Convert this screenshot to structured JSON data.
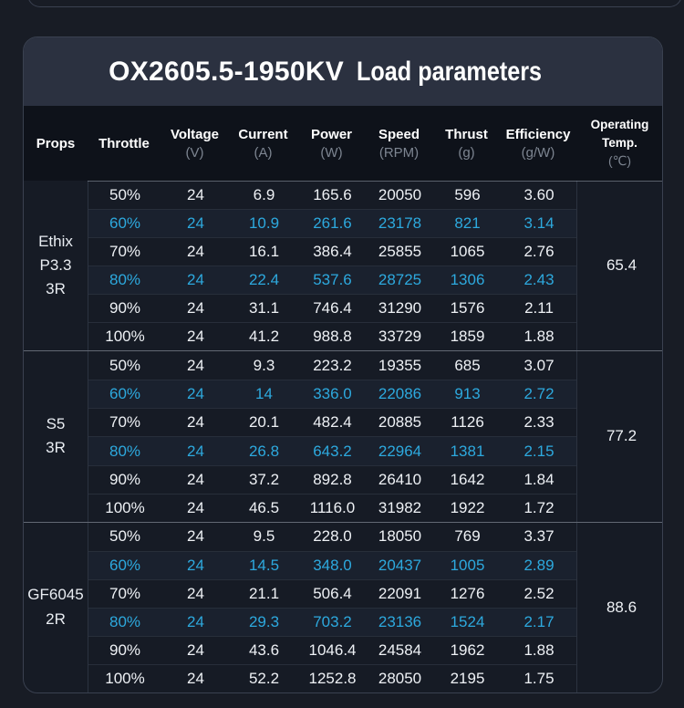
{
  "title": {
    "model": "OX2605.5-1950KV",
    "suffix": "Load parameters"
  },
  "columns": [
    {
      "label": "Props",
      "unit": ""
    },
    {
      "label": "Throttle",
      "unit": ""
    },
    {
      "label": "Voltage",
      "unit": "(V)"
    },
    {
      "label": "Current",
      "unit": "(A)"
    },
    {
      "label": "Power",
      "unit": "(W)"
    },
    {
      "label": "Speed",
      "unit": "(RPM)"
    },
    {
      "label": "Thrust",
      "unit": "(g)"
    },
    {
      "label": "Efficiency",
      "unit": "(g/W)"
    },
    {
      "label_line1": "Operating",
      "label_line2": "Temp.",
      "unit": "(℃)"
    }
  ],
  "groups": [
    {
      "prop_lines": [
        "Ethix",
        "P3.3",
        "3R"
      ],
      "operating_temp": "65.4",
      "rows": [
        {
          "throttle": "50%",
          "voltage": "24",
          "current": "6.9",
          "power": "165.6",
          "speed": "20050",
          "thrust": "596",
          "efficiency": "3.60",
          "highlight": false
        },
        {
          "throttle": "60%",
          "voltage": "24",
          "current": "10.9",
          "power": "261.6",
          "speed": "23178",
          "thrust": "821",
          "efficiency": "3.14",
          "highlight": true
        },
        {
          "throttle": "70%",
          "voltage": "24",
          "current": "16.1",
          "power": "386.4",
          "speed": "25855",
          "thrust": "1065",
          "efficiency": "2.76",
          "highlight": false
        },
        {
          "throttle": "80%",
          "voltage": "24",
          "current": "22.4",
          "power": "537.6",
          "speed": "28725",
          "thrust": "1306",
          "efficiency": "2.43",
          "highlight": true
        },
        {
          "throttle": "90%",
          "voltage": "24",
          "current": "31.1",
          "power": "746.4",
          "speed": "31290",
          "thrust": "1576",
          "efficiency": "2.11",
          "highlight": false
        },
        {
          "throttle": "100%",
          "voltage": "24",
          "current": "41.2",
          "power": "988.8",
          "speed": "33729",
          "thrust": "1859",
          "efficiency": "1.88",
          "highlight": false
        }
      ]
    },
    {
      "prop_lines": [
        "S5",
        "3R"
      ],
      "operating_temp": "77.2",
      "rows": [
        {
          "throttle": "50%",
          "voltage": "24",
          "current": "9.3",
          "power": "223.2",
          "speed": "19355",
          "thrust": "685",
          "efficiency": "3.07",
          "highlight": false
        },
        {
          "throttle": "60%",
          "voltage": "24",
          "current": "14",
          "power": "336.0",
          "speed": "22086",
          "thrust": "913",
          "efficiency": "2.72",
          "highlight": true
        },
        {
          "throttle": "70%",
          "voltage": "24",
          "current": "20.1",
          "power": "482.4",
          "speed": "20885",
          "thrust": "1126",
          "efficiency": "2.33",
          "highlight": false
        },
        {
          "throttle": "80%",
          "voltage": "24",
          "current": "26.8",
          "power": "643.2",
          "speed": "22964",
          "thrust": "1381",
          "efficiency": "2.15",
          "highlight": true
        },
        {
          "throttle": "90%",
          "voltage": "24",
          "current": "37.2",
          "power": "892.8",
          "speed": "26410",
          "thrust": "1642",
          "efficiency": "1.84",
          "highlight": false
        },
        {
          "throttle": "100%",
          "voltage": "24",
          "current": "46.5",
          "power": "1116.0",
          "speed": "31982",
          "thrust": "1922",
          "efficiency": "1.72",
          "highlight": false
        }
      ]
    },
    {
      "prop_lines": [
        "GF6045",
        "2R"
      ],
      "operating_temp": "88.6",
      "rows": [
        {
          "throttle": "50%",
          "voltage": "24",
          "current": "9.5",
          "power": "228.0",
          "speed": "18050",
          "thrust": "769",
          "efficiency": "3.37",
          "highlight": false
        },
        {
          "throttle": "60%",
          "voltage": "24",
          "current": "14.5",
          "power": "348.0",
          "speed": "20437",
          "thrust": "1005",
          "efficiency": "2.89",
          "highlight": true
        },
        {
          "throttle": "70%",
          "voltage": "24",
          "current": "21.1",
          "power": "506.4",
          "speed": "22091",
          "thrust": "1276",
          "efficiency": "2.52",
          "highlight": false
        },
        {
          "throttle": "80%",
          "voltage": "24",
          "current": "29.3",
          "power": "703.2",
          "speed": "23136",
          "thrust": "1524",
          "efficiency": "2.17",
          "highlight": true
        },
        {
          "throttle": "90%",
          "voltage": "24",
          "current": "43.6",
          "power": "1046.4",
          "speed": "24584",
          "thrust": "1962",
          "efficiency": "1.88",
          "highlight": false
        },
        {
          "throttle": "100%",
          "voltage": "24",
          "current": "52.2",
          "power": "1252.8",
          "speed": "28050",
          "thrust": "2195",
          "efficiency": "1.75",
          "highlight": false
        }
      ]
    }
  ],
  "colors": {
    "page_bg": "#181c25",
    "card_bg": "#161b25",
    "title_band_bg": "#2b3140",
    "header_bg": "#0e121a",
    "highlight_text": "#2da9de",
    "body_text": "#eef1f5",
    "unit_text": "#7d8591",
    "border": "#3a4150"
  }
}
